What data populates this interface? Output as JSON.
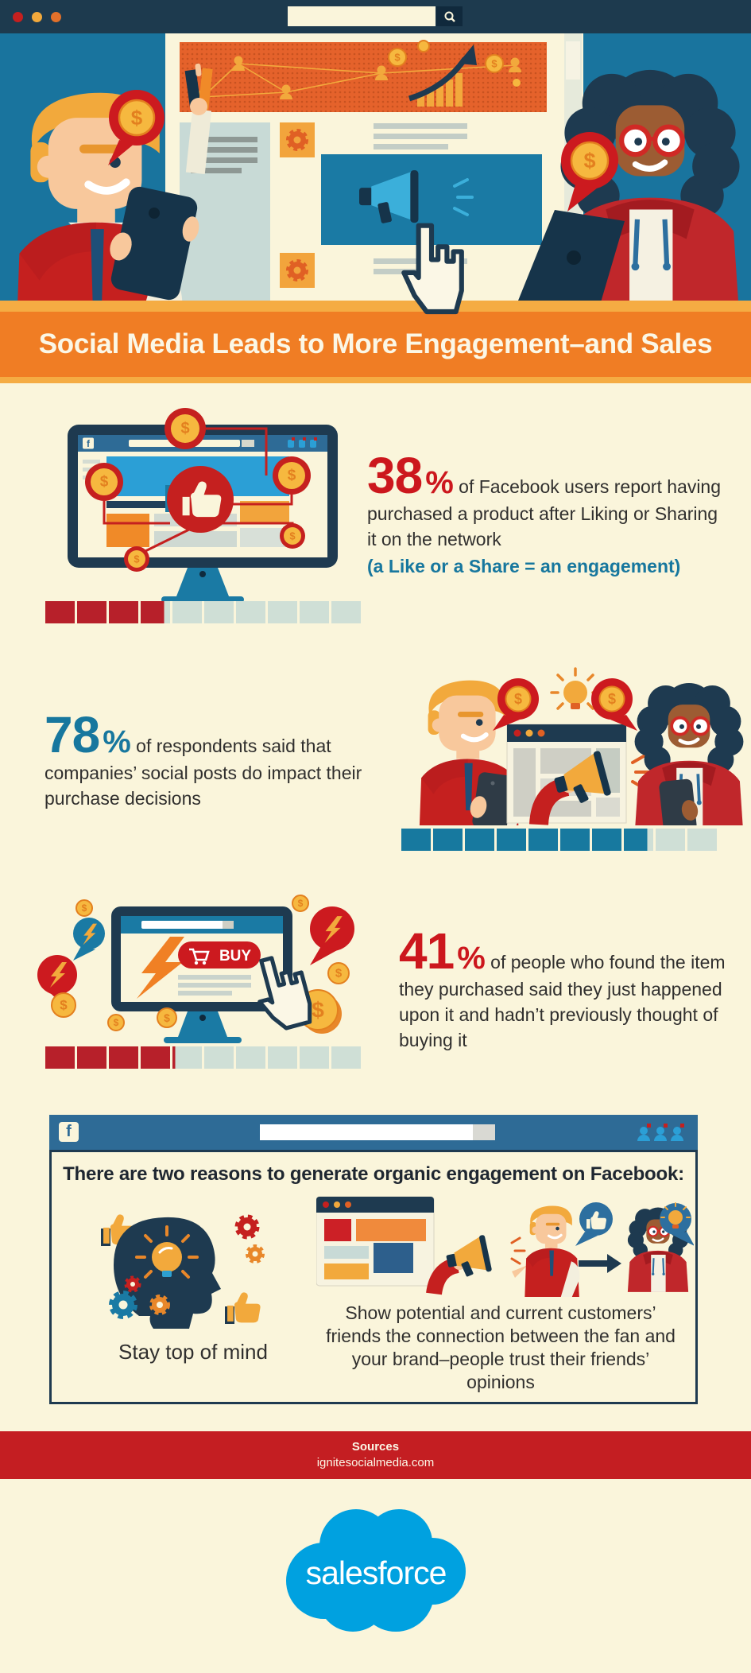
{
  "browser": {
    "search_placeholder": ""
  },
  "banner": {
    "title": "Social Media Leads to More Engagement–and Sales"
  },
  "stats": [
    {
      "number": "38",
      "symbol": "%",
      "text": " of Facebook users report having purchased a product after Liking or Sharing it on the network",
      "note": "(a Like or a Share = an engagement)",
      "percent": 38
    },
    {
      "number": "78",
      "symbol": "%",
      "text": " of respondents said that companies’ social posts do impact their purchase decisions",
      "percent": 78
    },
    {
      "number": "41",
      "symbol": "%",
      "text": " of people who found the item they purchased said they just happened upon it and hadn’t previously thought of buying it",
      "percent": 41
    }
  ],
  "illustration_labels": {
    "buy_button": "BUY",
    "facebook_f": "f",
    "dollar": "$"
  },
  "facebook_box": {
    "heading": "There are two reasons to generate organic engagement on Facebook:",
    "reason_left": "Stay top of mind",
    "reason_right": "Show potential and current customers’ friends the connection between the fan and your brand–people trust their friends’ opinions"
  },
  "footer": {
    "sources_label": "Sources",
    "source": "ignitesocialmedia.com"
  },
  "brand": {
    "name": "salesforce"
  },
  "colors": {
    "background_cream": "#FAF5DB",
    "navy": "#1E3A50",
    "hero_teal": "#19749E",
    "banner_orange": "#F07D24",
    "banner_orange_light": "#F5AC43",
    "red": "#C5201F",
    "stat_red": "#CC171D",
    "stat_teal": "#17779E",
    "gold": "#F2A93C",
    "facebook_blue": "#2E6B96",
    "bright_blue": "#2B9FD6",
    "progress_red": "#B7202A",
    "progress_teal": "#17799F",
    "progress_empty": "#CFDFD6",
    "salesforce_blue": "#00A1E0"
  }
}
